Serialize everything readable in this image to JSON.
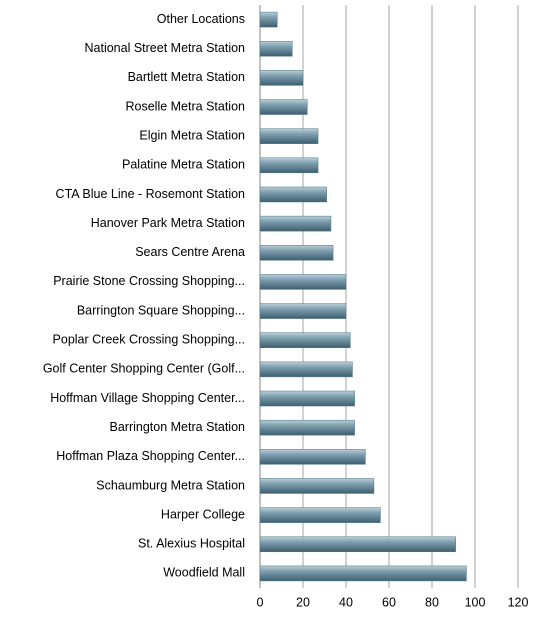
{
  "chart_data": {
    "type": "bar",
    "orientation": "horizontal",
    "categories": [
      "Other Locations",
      "National Street Metra Station",
      "Bartlett Metra Station",
      "Roselle Metra Station",
      "Elgin Metra Station",
      "Palatine Metra Station",
      "CTA Blue Line - Rosemont Station",
      "Hanover Park Metra Station",
      "Sears Centre Arena",
      "Prairie Stone Crossing Shopping...",
      "Barrington Square Shopping...",
      "Poplar Creek Crossing Shopping...",
      "Golf Center Shopping Center (Golf...",
      "Hoffman Village Shopping Center...",
      "Barrington Metra Station",
      "Hoffman Plaza Shopping Center...",
      "Schaumburg Metra Station",
      "Harper College",
      "St. Alexius Hospital",
      "Woodfield Mall"
    ],
    "values": [
      8,
      15,
      20,
      22,
      27,
      27,
      31,
      33,
      34,
      40,
      40,
      42,
      43,
      44,
      44,
      49,
      53,
      56,
      91,
      96
    ],
    "color": "#4f7587",
    "xlim": [
      0,
      120
    ],
    "xticks": [
      0,
      20,
      40,
      60,
      80,
      100,
      120
    ],
    "grid": true
  }
}
